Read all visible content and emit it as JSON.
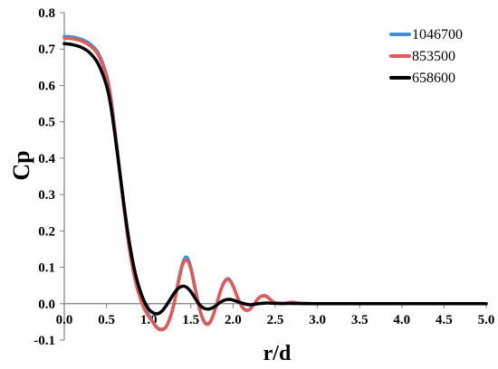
{
  "chart_data": {
    "type": "line",
    "xlabel": "r/d",
    "ylabel": "Cp",
    "xlim": [
      0.0,
      5.0
    ],
    "ylim": [
      -0.1,
      0.8
    ],
    "xticks": [
      "0.0",
      "0.5",
      "1.0",
      "1.5",
      "2.0",
      "2.5",
      "3.0",
      "3.5",
      "4.0",
      "4.5",
      "5.0"
    ],
    "yticks": [
      "-0.1",
      "0.0",
      "0.1",
      "0.2",
      "0.3",
      "0.4",
      "0.5",
      "0.6",
      "0.7",
      "0.8"
    ],
    "grid": false,
    "legend_position": "top-right",
    "series": [
      {
        "name": "1046700",
        "color": "#3f8fd4",
        "x": [
          0,
          0.1,
          0.2,
          0.3,
          0.4,
          0.5,
          0.55,
          0.6,
          0.65,
          0.7,
          0.75,
          0.8,
          0.85,
          0.9,
          0.95,
          1.0,
          1.05,
          1.1,
          1.15,
          1.2,
          1.25,
          1.3,
          1.35,
          1.4,
          1.45,
          1.5,
          1.55,
          1.6,
          1.65,
          1.7,
          1.75,
          1.8,
          1.85,
          1.9,
          1.95,
          2.0,
          2.05,
          2.1,
          2.15,
          2.2,
          2.25,
          2.3,
          2.35,
          2.4,
          2.45,
          2.5,
          2.6,
          2.7,
          2.8,
          3.0,
          3.5,
          4.0,
          4.5,
          5.0
        ],
        "values": [
          0.735,
          0.733,
          0.727,
          0.715,
          0.69,
          0.63,
          0.57,
          0.48,
          0.38,
          0.28,
          0.19,
          0.115,
          0.06,
          0.02,
          -0.01,
          -0.03,
          -0.05,
          -0.065,
          -0.07,
          -0.065,
          -0.04,
          0.0,
          0.06,
          0.11,
          0.128,
          0.1,
          0.045,
          -0.01,
          -0.045,
          -0.055,
          -0.04,
          -0.005,
          0.035,
          0.062,
          0.068,
          0.05,
          0.02,
          -0.005,
          -0.017,
          -0.015,
          0.0,
          0.015,
          0.022,
          0.02,
          0.01,
          0.002,
          0.0,
          0.004,
          0.001,
          0.0,
          0.0,
          0.0,
          0.0,
          0.0
        ]
      },
      {
        "name": "853500",
        "color": "#e05a5a",
        "x": [
          0,
          0.1,
          0.2,
          0.3,
          0.4,
          0.5,
          0.55,
          0.6,
          0.65,
          0.7,
          0.75,
          0.8,
          0.85,
          0.9,
          0.95,
          1.0,
          1.05,
          1.1,
          1.15,
          1.2,
          1.25,
          1.3,
          1.35,
          1.4,
          1.45,
          1.5,
          1.55,
          1.6,
          1.65,
          1.7,
          1.75,
          1.8,
          1.85,
          1.9,
          1.95,
          2.0,
          2.05,
          2.1,
          2.15,
          2.2,
          2.25,
          2.3,
          2.35,
          2.4,
          2.45,
          2.5,
          2.6,
          2.7,
          2.8,
          3.0,
          3.5,
          4.0,
          4.5,
          5.0
        ],
        "values": [
          0.73,
          0.728,
          0.722,
          0.71,
          0.685,
          0.625,
          0.565,
          0.475,
          0.375,
          0.275,
          0.185,
          0.11,
          0.055,
          0.015,
          -0.015,
          -0.035,
          -0.052,
          -0.067,
          -0.072,
          -0.066,
          -0.042,
          -0.002,
          0.055,
          0.105,
          0.12,
          0.095,
          0.04,
          -0.012,
          -0.047,
          -0.057,
          -0.042,
          -0.007,
          0.033,
          0.06,
          0.066,
          0.048,
          0.018,
          -0.007,
          -0.018,
          -0.016,
          -0.001,
          0.014,
          0.021,
          0.019,
          0.009,
          0.002,
          0.0,
          0.004,
          0.001,
          0.0,
          0.0,
          0.0,
          0.0,
          0.0
        ]
      },
      {
        "name": "658600",
        "color": "#000000",
        "x": [
          0,
          0.1,
          0.2,
          0.3,
          0.4,
          0.5,
          0.55,
          0.6,
          0.65,
          0.7,
          0.75,
          0.8,
          0.85,
          0.9,
          0.95,
          1.0,
          1.05,
          1.1,
          1.15,
          1.2,
          1.25,
          1.3,
          1.35,
          1.4,
          1.45,
          1.5,
          1.55,
          1.6,
          1.65,
          1.7,
          1.75,
          1.8,
          1.85,
          1.9,
          1.95,
          2.0,
          2.1,
          2.2,
          2.3,
          2.4,
          2.5,
          3.0,
          3.5,
          4.0,
          4.5,
          5.0
        ],
        "values": [
          0.715,
          0.712,
          0.705,
          0.69,
          0.66,
          0.6,
          0.545,
          0.465,
          0.375,
          0.285,
          0.2,
          0.13,
          0.075,
          0.035,
          0.005,
          -0.015,
          -0.025,
          -0.028,
          -0.022,
          -0.008,
          0.01,
          0.028,
          0.042,
          0.048,
          0.045,
          0.033,
          0.015,
          -0.002,
          -0.012,
          -0.015,
          -0.012,
          -0.005,
          0.004,
          0.01,
          0.012,
          0.01,
          0.002,
          -0.003,
          0.0,
          0.002,
          0.001,
          0.0,
          0.0,
          0.0,
          0.0,
          0.0
        ]
      }
    ]
  }
}
